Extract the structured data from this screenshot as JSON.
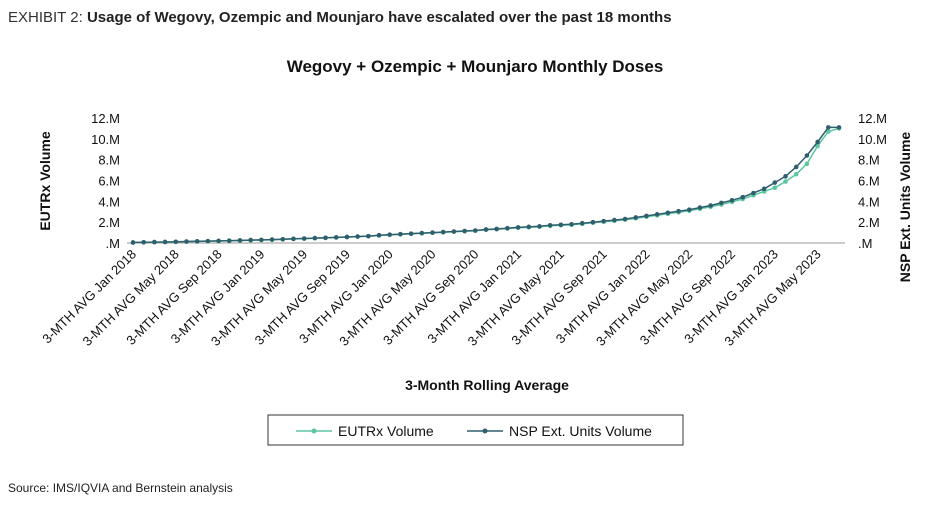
{
  "exhibit_label": "EXHIBIT 2:",
  "exhibit_title": "Usage of Wegovy, Ozempic and Mounjaro have escalated over the past 18 months",
  "source": "Source: IMS/IQVIA and Bernstein analysis",
  "chart_data": {
    "type": "line",
    "title": "Wegovy + Ozempic + Mounjaro Monthly Doses",
    "x_label": "3-Month Rolling Average",
    "y_label": "EUTRx Volume",
    "y2_label": "NSP Ext. Units Volume",
    "categories": [
      "3-MTH AVG Jan 2018",
      null,
      null,
      null,
      "3-MTH AVG May 2018",
      null,
      null,
      null,
      "3-MTH AVG Sep 2018",
      null,
      null,
      null,
      "3-MTH AVG Jan 2019",
      null,
      null,
      null,
      "3-MTH AVG May 2019",
      null,
      null,
      null,
      "3-MTH AVG Sep 2019",
      null,
      null,
      null,
      "3-MTH AVG Jan 2020",
      null,
      null,
      null,
      "3-MTH AVG May 2020",
      null,
      null,
      null,
      "3-MTH AVG Sep 2020",
      null,
      null,
      null,
      "3-MTH AVG Jan 2021",
      null,
      null,
      null,
      "3-MTH AVG May 2021",
      null,
      null,
      null,
      "3-MTH AVG Sep 2021",
      null,
      null,
      null,
      "3-MTH AVG Jan 2022",
      null,
      null,
      null,
      "3-MTH AVG May 2022",
      null,
      null,
      null,
      "3-MTH AVG Sep 2022",
      null,
      null,
      null,
      "3-MTH AVG Jan 2023",
      null,
      null,
      null,
      "3-MTH AVG May 2023",
      null,
      null
    ],
    "series": [
      {
        "name": "EUTRx Volume",
        "color": "#5cc6a0",
        "values": [
          40000,
          60000,
          80000,
          90000,
          110000,
          130000,
          150000,
          170000,
          190000,
          210000,
          240000,
          270000,
          290000,
          320000,
          350000,
          390000,
          420000,
          460000,
          490000,
          530000,
          570000,
          610000,
          650000,
          720000,
          780000,
          830000,
          880000,
          930000,
          980000,
          1030000,
          1080000,
          1130000,
          1180000,
          1270000,
          1320000,
          1390000,
          1460000,
          1510000,
          1560000,
          1650000,
          1700000,
          1750000,
          1840000,
          1940000,
          2040000,
          2140000,
          2240000,
          2380000,
          2520000,
          2660000,
          2800000,
          2950000,
          3100000,
          3280000,
          3470000,
          3700000,
          3950000,
          4220000,
          4580000,
          4950000,
          5300000,
          5900000,
          6600000,
          7600000,
          9300000,
          10700000,
          11000000
        ]
      },
      {
        "name": "NSP Ext. Units Volume",
        "color": "#2f5f6e",
        "axis": "y2",
        "values": [
          50000,
          70000,
          90000,
          100000,
          120000,
          140000,
          160000,
          180000,
          200000,
          220000,
          250000,
          280000,
          300000,
          330000,
          360000,
          400000,
          430000,
          470000,
          500000,
          540000,
          580000,
          620000,
          660000,
          750000,
          800000,
          850000,
          900000,
          950000,
          1000000,
          1050000,
          1100000,
          1150000,
          1200000,
          1300000,
          1350000,
          1420000,
          1500000,
          1550000,
          1600000,
          1700000,
          1750000,
          1800000,
          1900000,
          2000000,
          2100000,
          2200000,
          2300000,
          2450000,
          2600000,
          2750000,
          2900000,
          3050000,
          3200000,
          3400000,
          3600000,
          3850000,
          4100000,
          4400000,
          4800000,
          5200000,
          5800000,
          6400000,
          7300000,
          8400000,
          9700000,
          11100000,
          11100000
        ]
      }
    ],
    "ylim": [
      0,
      12000000
    ],
    "yticks": [
      {
        "value": 0,
        "label": ".M"
      },
      {
        "value": 2000000,
        "label": "2.M"
      },
      {
        "value": 4000000,
        "label": "4.M"
      },
      {
        "value": 6000000,
        "label": "6.M"
      },
      {
        "value": 8000000,
        "label": "8.M"
      },
      {
        "value": 10000000,
        "label": "10.M"
      },
      {
        "value": 12000000,
        "label": "12.M"
      }
    ],
    "y2lim": [
      0,
      12000000
    ],
    "y2ticks": [
      {
        "value": 0,
        "label": ".M"
      },
      {
        "value": 2000000,
        "label": "2.M"
      },
      {
        "value": 4000000,
        "label": "4.M"
      },
      {
        "value": 6000000,
        "label": "6.M"
      },
      {
        "value": 8000000,
        "label": "8.M"
      },
      {
        "value": 10000000,
        "label": "10.M"
      },
      {
        "value": 12000000,
        "label": "12.M"
      }
    ],
    "legend": "bottom"
  }
}
